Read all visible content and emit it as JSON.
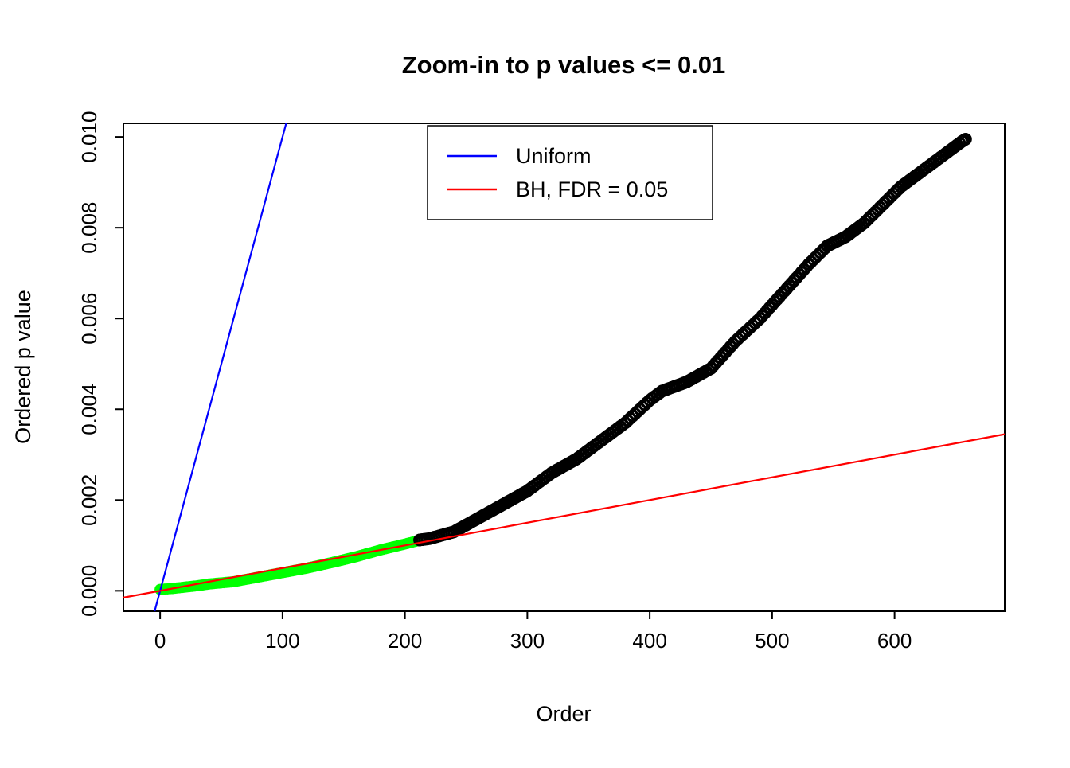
{
  "chart_data": {
    "type": "scatter",
    "title": "Zoom-in to p values <= 0.01",
    "xlabel": "Order",
    "ylabel": "Ordered p value",
    "xlim": [
      -30,
      690
    ],
    "ylim": [
      -0.00045,
      0.0103
    ],
    "x_ticks": [
      0,
      100,
      200,
      300,
      400,
      500,
      600
    ],
    "x_tick_labels": [
      "0",
      "100",
      "200",
      "300",
      "400",
      "500",
      "600"
    ],
    "y_ticks": [
      0,
      0.002,
      0.004,
      0.006,
      0.008,
      0.01
    ],
    "y_tick_labels": [
      "0.000",
      "0.002",
      "0.004",
      "0.006",
      "0.008",
      "0.010"
    ],
    "grid": false,
    "box": true,
    "legend": {
      "position": "top-center",
      "entries": [
        {
          "label": "Uniform",
          "color": "#0000FF"
        },
        {
          "label": "BH, FDR = 0.05",
          "color": "#FF0000"
        }
      ]
    },
    "series": [
      {
        "name": "significant-points",
        "kind": "scatter-band",
        "marker": "filled-circle",
        "color": "#00FF00",
        "points": [
          [
            0,
            3e-05
          ],
          [
            10,
            5e-05
          ],
          [
            20,
            8e-05
          ],
          [
            30,
            0.00011
          ],
          [
            40,
            0.00015
          ],
          [
            60,
            0.0002
          ],
          [
            80,
            0.0003
          ],
          [
            100,
            0.0004
          ],
          [
            120,
            0.0005
          ],
          [
            140,
            0.00062
          ],
          [
            160,
            0.00075
          ],
          [
            180,
            0.0009
          ],
          [
            200,
            0.00103
          ],
          [
            210,
            0.0011
          ]
        ]
      },
      {
        "name": "nonsignificant-points",
        "kind": "scatter-band",
        "marker": "open-circle",
        "color": "#000000",
        "points": [
          [
            212,
            0.00112
          ],
          [
            220,
            0.00115
          ],
          [
            240,
            0.0013
          ],
          [
            260,
            0.0016
          ],
          [
            280,
            0.0019
          ],
          [
            300,
            0.0022
          ],
          [
            320,
            0.0026
          ],
          [
            340,
            0.0029
          ],
          [
            360,
            0.0033
          ],
          [
            380,
            0.0037
          ],
          [
            400,
            0.0042
          ],
          [
            410,
            0.0044
          ],
          [
            430,
            0.0046
          ],
          [
            450,
            0.0049
          ],
          [
            470,
            0.0055
          ],
          [
            490,
            0.006
          ],
          [
            510,
            0.0066
          ],
          [
            530,
            0.0072
          ],
          [
            545,
            0.0076
          ],
          [
            560,
            0.0078
          ],
          [
            575,
            0.0081
          ],
          [
            590,
            0.0085
          ],
          [
            605,
            0.0089
          ],
          [
            620,
            0.0092
          ],
          [
            640,
            0.0096
          ],
          [
            655,
            0.0099
          ],
          [
            658,
            0.00995
          ]
        ]
      },
      {
        "name": "uniform-line",
        "kind": "abline",
        "color": "#0000FF",
        "slope": 0.0001,
        "intercept": 0
      },
      {
        "name": "bh-line",
        "kind": "abline",
        "color": "#FF0000",
        "slope": 5e-06,
        "intercept": 0
      }
    ]
  }
}
